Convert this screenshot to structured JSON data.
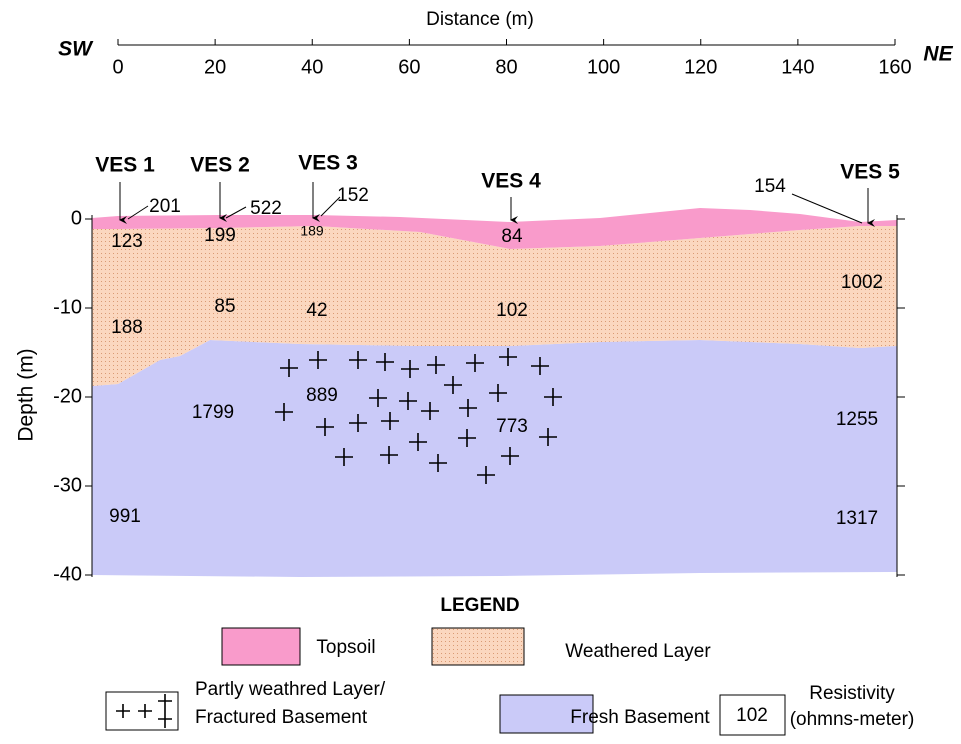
{
  "header": {
    "x_axis_title": "Distance (m)",
    "left_label": "SW",
    "right_label": "NE"
  },
  "x_ticks": [
    0,
    20,
    40,
    60,
    80,
    100,
    120,
    140,
    160
  ],
  "y_axis_title": "Depth (m)",
  "y_ticks": [
    0,
    -10,
    -20,
    -30,
    -40
  ],
  "ves": [
    {
      "label": "VES 1",
      "topsoil_resistivity": "201"
    },
    {
      "label": "VES 2",
      "topsoil_resistivity": "522"
    },
    {
      "label": "VES 3",
      "topsoil_resistivity": "152"
    },
    {
      "label": "VES 4"
    },
    {
      "label": "VES 5",
      "topsoil_resistivity": "154"
    }
  ],
  "resistivity_labels": [
    "123",
    "199",
    "189",
    "84",
    "1002",
    "188",
    "85",
    "42",
    "102",
    "1799",
    "889",
    "773",
    "1255",
    "991",
    "1317"
  ],
  "legend": {
    "title": "LEGEND",
    "topsoil": "Topsoil",
    "weathered": "Weathered Layer",
    "fractured": [
      "Partly weathred Layer/",
      "Fractured Basement"
    ],
    "fresh": "Fresh Basement",
    "resistivity_sample": "102",
    "resistivity": [
      "Resistivity",
      "(ohmns-meter)"
    ]
  }
}
